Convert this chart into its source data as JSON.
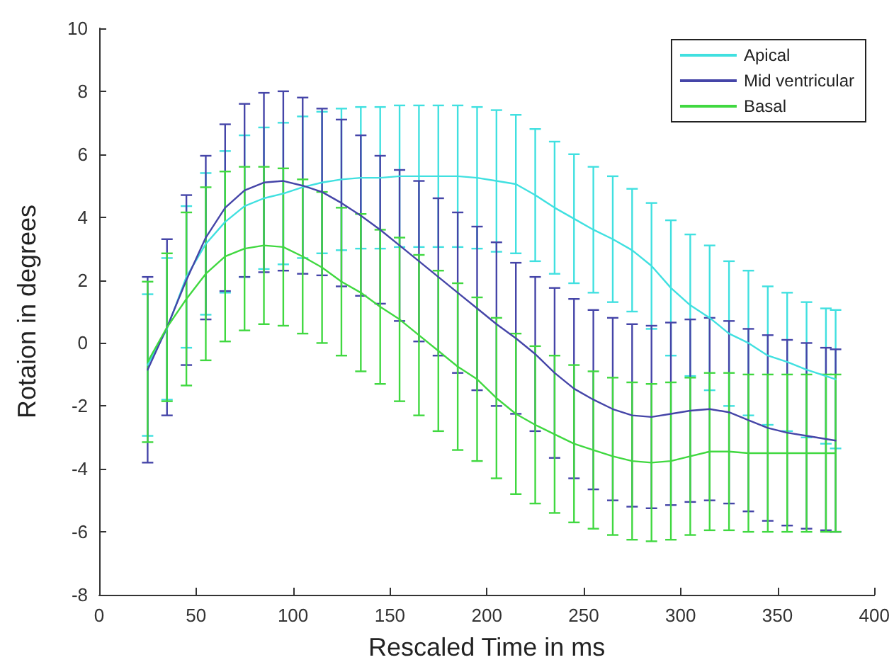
{
  "chart_data": {
    "type": "line",
    "xlabel": "Rescaled Time in ms",
    "ylabel": "Rotaion in degrees",
    "xlim": [
      0,
      400
    ],
    "xticks": [
      0,
      50,
      100,
      150,
      200,
      250,
      300,
      350,
      400
    ],
    "ylim": [
      -8,
      10
    ],
    "yticks": [
      -8,
      -6,
      -4,
      -2,
      0,
      2,
      4,
      6,
      8,
      10
    ],
    "legend": "top right",
    "grid": false,
    "marker": "none",
    "line_style": "solid",
    "x": [
      25,
      35,
      45,
      55,
      65,
      75,
      85,
      95,
      105,
      115,
      125,
      135,
      145,
      155,
      165,
      175,
      185,
      195,
      205,
      215,
      225,
      235,
      245,
      255,
      265,
      275,
      285,
      295,
      305,
      315,
      325,
      335,
      345,
      355,
      365,
      375,
      380
    ],
    "series": [
      {
        "name": "Apical",
        "color": "#40e0e0",
        "values": [
          -0.7,
          0.45,
          2.1,
          3.15,
          3.85,
          4.35,
          4.6,
          4.75,
          4.95,
          5.1,
          5.2,
          5.25,
          5.25,
          5.3,
          5.3,
          5.3,
          5.3,
          5.25,
          5.15,
          5.05,
          4.7,
          4.3,
          3.95,
          3.6,
          3.3,
          2.95,
          2.45,
          1.75,
          1.2,
          0.8,
          0.3,
          0.0,
          -0.4,
          -0.6,
          -0.85,
          -1.05,
          -1.15
        ],
        "errors": [
          2.25,
          2.25,
          2.25,
          2.25,
          2.25,
          2.25,
          2.25,
          2.25,
          2.25,
          2.25,
          2.25,
          2.25,
          2.25,
          2.25,
          2.25,
          2.25,
          2.25,
          2.25,
          2.25,
          2.2,
          2.1,
          2.1,
          2.05,
          2.0,
          2.0,
          1.95,
          2.0,
          2.15,
          2.25,
          2.3,
          2.3,
          2.3,
          2.2,
          2.2,
          2.15,
          2.15,
          2.2
        ]
      },
      {
        "name": "Mid ventricular",
        "color": "#4545a8",
        "values": [
          -0.85,
          0.5,
          2.0,
          3.35,
          4.3,
          4.85,
          5.1,
          5.15,
          5.0,
          4.8,
          4.45,
          4.05,
          3.6,
          3.1,
          2.6,
          2.1,
          1.6,
          1.1,
          0.6,
          0.15,
          -0.35,
          -0.95,
          -1.45,
          -1.8,
          -2.1,
          -2.3,
          -2.35,
          -2.25,
          -2.15,
          -2.1,
          -2.2,
          -2.45,
          -2.7,
          -2.85,
          -2.95,
          -3.05,
          -3.1
        ],
        "errors": [
          2.95,
          2.8,
          2.7,
          2.6,
          2.65,
          2.75,
          2.85,
          2.85,
          2.8,
          2.65,
          2.65,
          2.55,
          2.35,
          2.4,
          2.55,
          2.5,
          2.55,
          2.6,
          2.6,
          2.4,
          2.45,
          2.7,
          2.85,
          2.85,
          2.9,
          2.9,
          2.9,
          2.9,
          2.9,
          2.9,
          2.9,
          2.9,
          2.95,
          2.95,
          2.95,
          2.9,
          2.9
        ]
      },
      {
        "name": "Basal",
        "color": "#40d840",
        "values": [
          -0.6,
          0.5,
          1.4,
          2.2,
          2.75,
          3.0,
          3.1,
          3.05,
          2.75,
          2.4,
          1.95,
          1.6,
          1.15,
          0.75,
          0.25,
          -0.25,
          -0.75,
          -1.15,
          -1.75,
          -2.25,
          -2.6,
          -2.9,
          -3.2,
          -3.4,
          -3.6,
          -3.75,
          -3.8,
          -3.75,
          -3.6,
          -3.45,
          -3.45,
          -3.5,
          -3.5,
          -3.5,
          -3.5,
          -3.5,
          -3.5
        ],
        "errors": [
          2.55,
          2.35,
          2.75,
          2.75,
          2.7,
          2.6,
          2.5,
          2.5,
          2.45,
          2.4,
          2.35,
          2.5,
          2.45,
          2.6,
          2.55,
          2.55,
          2.65,
          2.6,
          2.55,
          2.55,
          2.5,
          2.5,
          2.5,
          2.5,
          2.5,
          2.5,
          2.5,
          2.5,
          2.5,
          2.5,
          2.5,
          2.5,
          2.5,
          2.5,
          2.5,
          2.5,
          2.5
        ]
      }
    ]
  }
}
